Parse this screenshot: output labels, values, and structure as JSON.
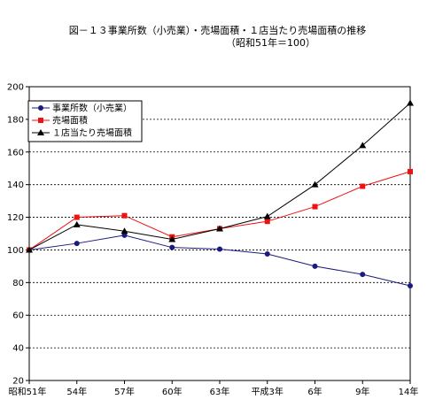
{
  "chart_data": {
    "type": "line",
    "title": "図－１３事業所数（小売業）・売場面積・１店当たり売場面積の推移",
    "subtitle": "（昭和51年＝100）",
    "xlabel": "",
    "ylabel": "",
    "categories": [
      "昭和51年",
      "54年",
      "57年",
      "60年",
      "63年",
      "平成3年",
      "6年",
      "9年",
      "14年"
    ],
    "ylim": [
      20,
      200
    ],
    "yticks": [
      "20",
      "40",
      "60",
      "80",
      "100",
      "120",
      "140",
      "160",
      "180",
      "200"
    ],
    "grid": true,
    "legend_position": "top-left",
    "series": [
      {
        "name": "事業所数（小売業）",
        "color": "#1a1a80",
        "marker": "circle",
        "values": [
          100,
          104,
          109,
          101.5,
          100.5,
          97.5,
          90,
          85,
          78
        ]
      },
      {
        "name": "売場面積",
        "color": "#ee1111",
        "marker": "square",
        "values": [
          100,
          120,
          121,
          108,
          113,
          117.5,
          126.5,
          139,
          148
        ]
      },
      {
        "name": "１店当たり売場面積",
        "color": "#000000",
        "marker": "triangle",
        "values": [
          100,
          115.5,
          111.5,
          106.5,
          113,
          120.5,
          140,
          164,
          190
        ]
      }
    ]
  }
}
